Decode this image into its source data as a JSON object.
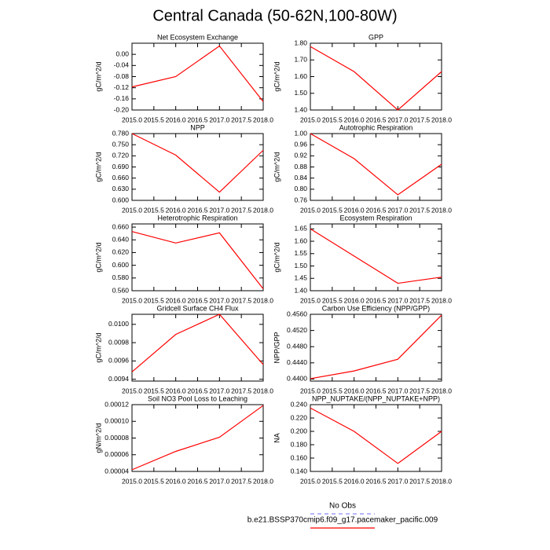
{
  "title": "Central Canada (50-62N,100-80W)",
  "legend": [
    {
      "name": "No Obs",
      "color": "#8a8aff",
      "dashed": true
    },
    {
      "name": "b.e21.BSSP370cmip6.f09_g17.pacemaker_pacific.009",
      "color": "#ff0000",
      "dashed": false
    }
  ],
  "chart_data": [
    {
      "type": "line",
      "title": "Net Ecosystem Exchange",
      "y_label": "gC/m^2/d",
      "color": "#ff0000",
      "x": [
        2015,
        2016,
        2017,
        2018
      ],
      "values": [
        -0.117,
        -0.08,
        0.03,
        -0.17
      ],
      "xlim": [
        2015,
        2018
      ],
      "ylim": [
        -0.2,
        0.04
      ],
      "xticks": [
        {
          "value": 2015,
          "label": "2015.0"
        },
        2015.5,
        {
          "value": 2016,
          "label": "2016.0"
        },
        2016.5,
        {
          "value": 2017,
          "label": "2017.0"
        },
        2017.5,
        {
          "value": 2018,
          "label": "2018.0"
        }
      ],
      "yticks": [
        {
          "value": -0.2,
          "label": "-0.20"
        },
        {
          "value": -0.16,
          "label": "-0.16"
        },
        {
          "value": -0.12,
          "label": "-0.12"
        },
        {
          "value": -0.08,
          "label": "-0.08"
        },
        {
          "value": -0.04,
          "label": "-0.04"
        },
        {
          "value": 0,
          "label": "0.00"
        }
      ]
    },
    {
      "type": "line",
      "title": "GPP",
      "y_label": "gC/m^2/d",
      "color": "#ff0000",
      "x": [
        2015,
        2016,
        2017,
        2018
      ],
      "values": [
        1.78,
        1.63,
        1.4,
        1.63
      ],
      "xlim": [
        2015,
        2018
      ],
      "ylim": [
        1.4,
        1.8
      ],
      "xticks": [
        {
          "value": 2015,
          "label": "2015.0"
        },
        2015.5,
        {
          "value": 2016,
          "label": "2016.0"
        },
        2016.5,
        {
          "value": 2017,
          "label": "2017.0"
        },
        2017.5,
        {
          "value": 2018,
          "label": "2018.0"
        }
      ],
      "yticks": [
        {
          "value": 1.4,
          "label": "1.40"
        },
        {
          "value": 1.5,
          "label": "1.50"
        },
        {
          "value": 1.6,
          "label": "1.60"
        },
        {
          "value": 1.7,
          "label": "1.70"
        },
        {
          "value": 1.8,
          "label": "1.80"
        }
      ]
    },
    {
      "type": "line",
      "title": "NPP",
      "y_label": "gC/m^2/d",
      "color": "#ff0000",
      "x": [
        2015,
        2016,
        2017,
        2018
      ],
      "values": [
        0.78,
        0.722,
        0.622,
        0.735
      ],
      "xlim": [
        2015,
        2018
      ],
      "ylim": [
        0.6,
        0.78
      ],
      "xticks": [
        {
          "value": 2015,
          "label": "2015.0"
        },
        2015.5,
        {
          "value": 2016,
          "label": "2016.0"
        },
        2016.5,
        {
          "value": 2017,
          "label": "2017.0"
        },
        2017.5,
        {
          "value": 2018,
          "label": "2018.0"
        }
      ],
      "yticks": [
        {
          "value": 0.6,
          "label": "0.600"
        },
        {
          "value": 0.63,
          "label": "0.630"
        },
        {
          "value": 0.66,
          "label": "0.660"
        },
        {
          "value": 0.69,
          "label": "0.690"
        },
        {
          "value": 0.72,
          "label": "0.720"
        },
        {
          "value": 0.75,
          "label": "0.750"
        },
        {
          "value": 0.78,
          "label": "0.780"
        }
      ]
    },
    {
      "type": "line",
      "title": "Autotrophic Respiration",
      "y_label": "gC/m^2/d",
      "color": "#ff0000",
      "x": [
        2015,
        2016,
        2017,
        2018
      ],
      "values": [
        1.0,
        0.91,
        0.78,
        0.89
      ],
      "xlim": [
        2015,
        2018
      ],
      "ylim": [
        0.76,
        1.0
      ],
      "xticks": [
        {
          "value": 2015,
          "label": "2015.0"
        },
        2015.5,
        {
          "value": 2016,
          "label": "2016.0"
        },
        2016.5,
        {
          "value": 2017,
          "label": "2017.0"
        },
        2017.5,
        {
          "value": 2018,
          "label": "2018.0"
        }
      ],
      "yticks": [
        {
          "value": 0.76,
          "label": "0.76"
        },
        {
          "value": 0.8,
          "label": "0.80"
        },
        {
          "value": 0.84,
          "label": "0.84"
        },
        {
          "value": 0.88,
          "label": "0.88"
        },
        {
          "value": 0.92,
          "label": "0.92"
        },
        {
          "value": 0.96,
          "label": "0.96"
        },
        {
          "value": 1.0,
          "label": "1.00"
        }
      ]
    },
    {
      "type": "line",
      "title": "Heterotrophic Respiration",
      "y_label": "gC/m^2/d",
      "color": "#ff0000",
      "x": [
        2015,
        2016,
        2017,
        2018
      ],
      "values": [
        0.653,
        0.635,
        0.651,
        0.563
      ],
      "xlim": [
        2015,
        2018
      ],
      "ylim": [
        0.56,
        0.665
      ],
      "xticks": [
        {
          "value": 2015,
          "label": "2015.0"
        },
        2015.5,
        {
          "value": 2016,
          "label": "2016.0"
        },
        2016.5,
        {
          "value": 2017,
          "label": "2017.0"
        },
        2017.5,
        {
          "value": 2018,
          "label": "2018.0"
        }
      ],
      "yticks": [
        {
          "value": 0.56,
          "label": "0.560"
        },
        {
          "value": 0.58,
          "label": "0.580"
        },
        {
          "value": 0.6,
          "label": "0.600"
        },
        {
          "value": 0.62,
          "label": "0.620"
        },
        {
          "value": 0.64,
          "label": "0.640"
        },
        {
          "value": 0.66,
          "label": "0.660"
        }
      ]
    },
    {
      "type": "line",
      "title": "Ecosystem Respiration",
      "y_label": "gC/m^2/d",
      "color": "#ff0000",
      "x": [
        2015,
        2016,
        2017,
        2018
      ],
      "values": [
        1.65,
        1.54,
        1.43,
        1.455
      ],
      "xlim": [
        2015,
        2018
      ],
      "ylim": [
        1.4,
        1.67
      ],
      "xticks": [
        {
          "value": 2015,
          "label": "2015.0"
        },
        2015.5,
        {
          "value": 2016,
          "label": "2016.0"
        },
        2016.5,
        {
          "value": 2017,
          "label": "2017.0"
        },
        2017.5,
        {
          "value": 2018,
          "label": "2018.0"
        }
      ],
      "yticks": [
        {
          "value": 1.4,
          "label": "1.40"
        },
        {
          "value": 1.45,
          "label": "1.45"
        },
        {
          "value": 1.5,
          "label": "1.50"
        },
        {
          "value": 1.55,
          "label": "1.55"
        },
        {
          "value": 1.6,
          "label": "1.60"
        },
        {
          "value": 1.65,
          "label": "1.65"
        }
      ]
    },
    {
      "type": "line",
      "title": "Gridcell Surface CH4 Flux",
      "y_label": "gC/m^2/d",
      "color": "#ff0000",
      "x": [
        2015,
        2016,
        2017,
        2018
      ],
      "values": [
        0.00948,
        0.00989,
        0.01011,
        0.00956
      ],
      "xlim": [
        2015,
        2018
      ],
      "ylim": [
        0.00938,
        0.01011
      ],
      "xticks": [
        {
          "value": 2015,
          "label": "2015.0"
        },
        2015.5,
        {
          "value": 2016,
          "label": "2016.0"
        },
        2016.5,
        {
          "value": 2017,
          "label": "2017.0"
        },
        2017.5,
        {
          "value": 2018,
          "label": "2018.0"
        }
      ],
      "yticks": [
        0.0094,
        0.0096,
        0.0098,
        {
          "value": 0.01,
          "label": "0.0100"
        }
      ]
    },
    {
      "type": "line",
      "title": "Carbon Use Efficiency (NPP/GPP)",
      "y_label": "NPP/GPP",
      "color": "#ff0000",
      "x": [
        2015,
        2016,
        2017,
        2018
      ],
      "values": [
        0.4401,
        0.442,
        0.4449,
        0.4558
      ],
      "xlim": [
        2015,
        2018
      ],
      "ylim": [
        0.4395,
        0.456
      ],
      "xticks": [
        {
          "value": 2015,
          "label": "2015.0"
        },
        2015.5,
        {
          "value": 2016,
          "label": "2016.0"
        },
        2016.5,
        {
          "value": 2017,
          "label": "2017.0"
        },
        2017.5,
        {
          "value": 2018,
          "label": "2018.0"
        }
      ],
      "yticks": [
        {
          "value": 0.44,
          "label": "0.4400"
        },
        {
          "value": 0.444,
          "label": "0.4440"
        },
        {
          "value": 0.448,
          "label": "0.4480"
        },
        {
          "value": 0.452,
          "label": "0.4520"
        },
        {
          "value": 0.456,
          "label": "0.4560"
        }
      ]
    },
    {
      "type": "line",
      "title": "Soil NO3 Pool Loss to Leaching",
      "y_label": "gN/m^2/d",
      "color": "#ff0000",
      "x": [
        2015,
        2016,
        2017,
        2018
      ],
      "values": [
        4.2e-05,
        6.4e-05,
        8.1e-05,
        0.000119
      ],
      "xlim": [
        2015,
        2018
      ],
      "ylim": [
        4e-05,
        0.00012
      ],
      "xticks": [
        {
          "value": 2015,
          "label": "2015.0"
        },
        2015.5,
        {
          "value": 2016,
          "label": "2016.0"
        },
        2016.5,
        {
          "value": 2017,
          "label": "2017.0"
        },
        2017.5,
        {
          "value": 2018,
          "label": "2018.0"
        }
      ],
      "yticks": [
        4e-05,
        6e-05,
        8e-05,
        {
          "value": 0.0001,
          "label": "0.00010"
        },
        0.00012
      ]
    },
    {
      "type": "line",
      "title": "NPP_NUPTAKE/(NPP_NUPTAKE+NPP)",
      "y_label": "NA",
      "color": "#ff0000",
      "x": [
        2015,
        2016,
        2017,
        2018
      ],
      "values": [
        0.235,
        0.2,
        0.152,
        0.2
      ],
      "xlim": [
        2015,
        2018
      ],
      "ylim": [
        0.14,
        0.24
      ],
      "xticks": [
        {
          "value": 2015,
          "label": "2015.0"
        },
        2015.5,
        {
          "value": 2016,
          "label": "2016.0"
        },
        2016.5,
        {
          "value": 2017,
          "label": "2017.0"
        },
        2017.5,
        {
          "value": 2018,
          "label": "2018.0"
        }
      ],
      "yticks": [
        {
          "value": 0.14,
          "label": "0.140"
        },
        {
          "value": 0.16,
          "label": "0.160"
        },
        {
          "value": 0.18,
          "label": "0.180"
        },
        {
          "value": 0.2,
          "label": "0.200"
        },
        {
          "value": 0.22,
          "label": "0.220"
        },
        {
          "value": 0.24,
          "label": "0.240"
        }
      ]
    }
  ]
}
